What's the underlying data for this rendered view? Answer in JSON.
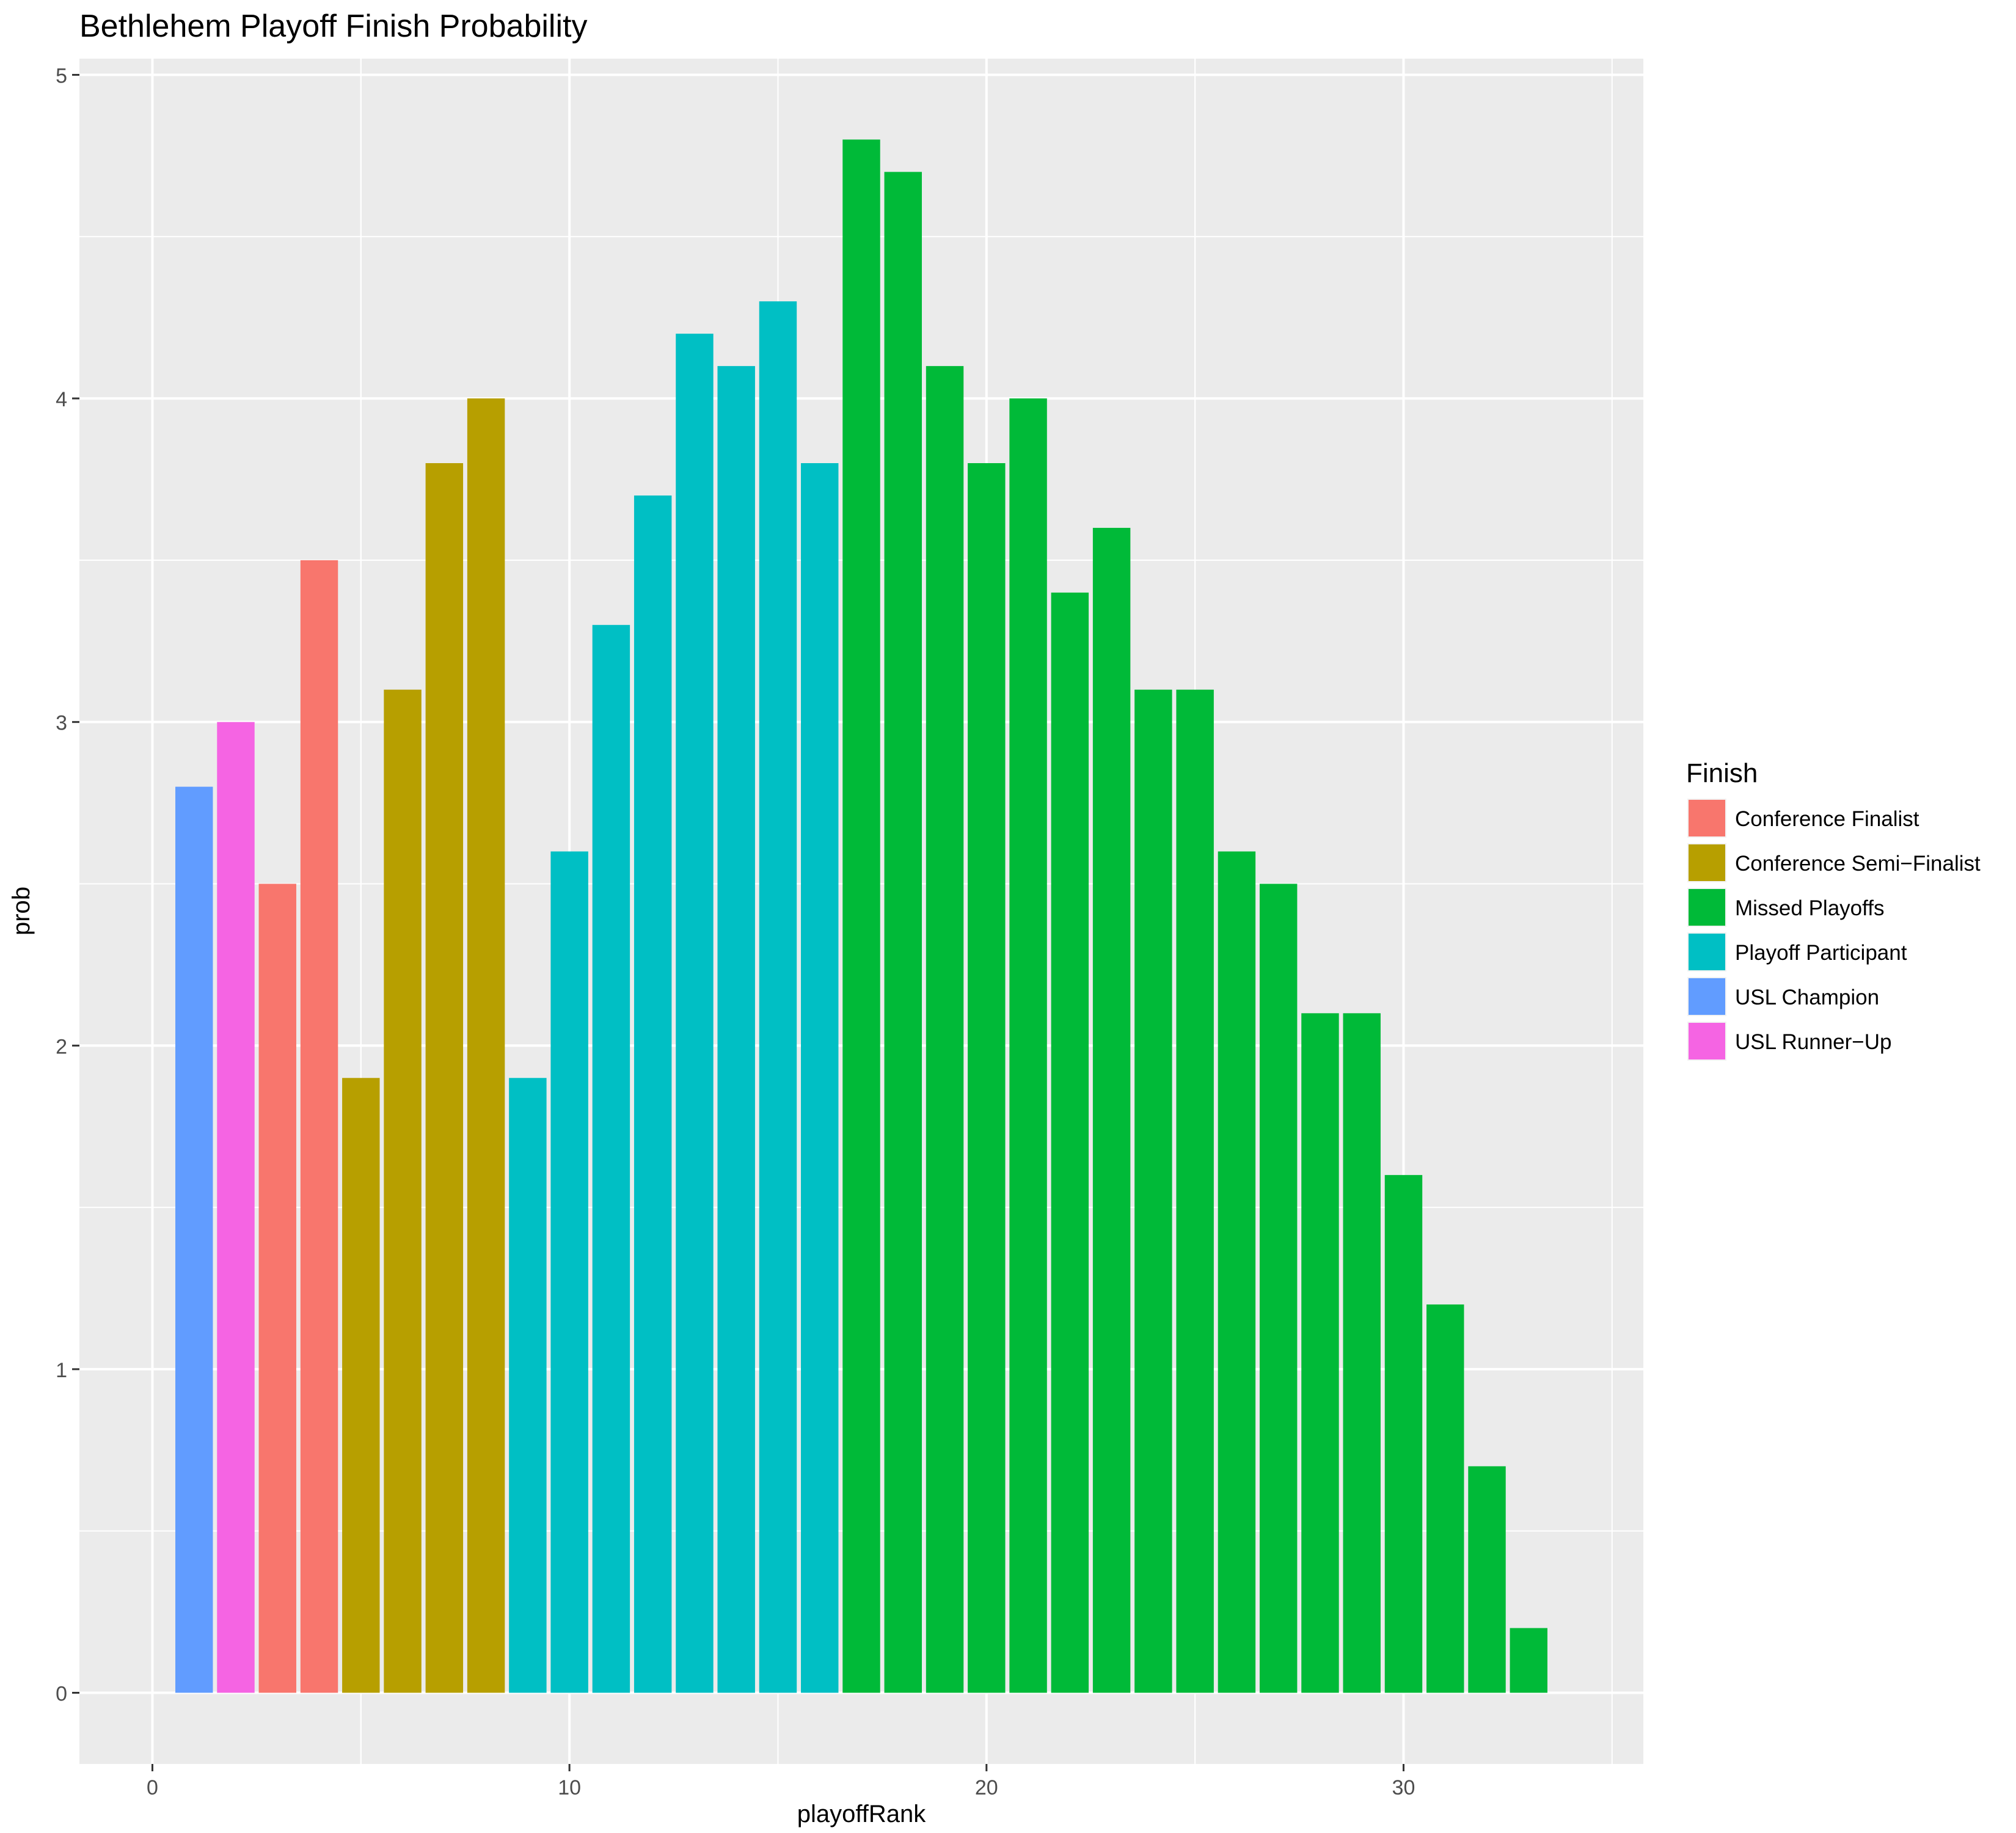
{
  "chart_data": {
    "type": "bar",
    "title": "Bethlehem Playoff Finish Probability",
    "xlabel": "playoffRank",
    "ylabel": "prob",
    "xlim": [
      -1.75,
      35.75
    ],
    "ylim": [
      -0.22,
      5.05
    ],
    "x_ticks": [
      0,
      10,
      20,
      30
    ],
    "y_ticks": [
      0,
      1,
      2,
      3,
      4,
      5
    ],
    "grid": true,
    "legend_position": "right",
    "legend": {
      "title": "Finish",
      "entries": [
        {
          "name": "Conference Finalist",
          "color": "#F8766D"
        },
        {
          "name": "Conference Semi−Finalist",
          "color": "#B79F00"
        },
        {
          "name": "Missed Playoffs",
          "color": "#00BA38"
        },
        {
          "name": "Playoff Participant",
          "color": "#00BFC4"
        },
        {
          "name": "USL Champion",
          "color": "#619CFF"
        },
        {
          "name": "USL Runner−Up",
          "color": "#F564E3"
        }
      ]
    },
    "points": [
      {
        "x": 1,
        "y": 2.8,
        "finish": "USL Champion"
      },
      {
        "x": 2,
        "y": 3.0,
        "finish": "USL Runner−Up"
      },
      {
        "x": 3,
        "y": 2.5,
        "finish": "Conference Finalist"
      },
      {
        "x": 4,
        "y": 3.5,
        "finish": "Conference Finalist"
      },
      {
        "x": 5,
        "y": 1.9,
        "finish": "Conference Semi−Finalist"
      },
      {
        "x": 6,
        "y": 3.1,
        "finish": "Conference Semi−Finalist"
      },
      {
        "x": 7,
        "y": 3.8,
        "finish": "Conference Semi−Finalist"
      },
      {
        "x": 8,
        "y": 4.0,
        "finish": "Conference Semi−Finalist"
      },
      {
        "x": 9,
        "y": 1.9,
        "finish": "Playoff Participant"
      },
      {
        "x": 10,
        "y": 2.6,
        "finish": "Playoff Participant"
      },
      {
        "x": 11,
        "y": 3.3,
        "finish": "Playoff Participant"
      },
      {
        "x": 12,
        "y": 3.7,
        "finish": "Playoff Participant"
      },
      {
        "x": 13,
        "y": 4.2,
        "finish": "Playoff Participant"
      },
      {
        "x": 14,
        "y": 4.1,
        "finish": "Playoff Participant"
      },
      {
        "x": 15,
        "y": 4.3,
        "finish": "Playoff Participant"
      },
      {
        "x": 16,
        "y": 3.8,
        "finish": "Playoff Participant"
      },
      {
        "x": 17,
        "y": 4.8,
        "finish": "Missed Playoffs"
      },
      {
        "x": 18,
        "y": 4.7,
        "finish": "Missed Playoffs"
      },
      {
        "x": 19,
        "y": 4.1,
        "finish": "Missed Playoffs"
      },
      {
        "x": 20,
        "y": 3.8,
        "finish": "Missed Playoffs"
      },
      {
        "x": 21,
        "y": 4.0,
        "finish": "Missed Playoffs"
      },
      {
        "x": 22,
        "y": 3.4,
        "finish": "Missed Playoffs"
      },
      {
        "x": 23,
        "y": 3.6,
        "finish": "Missed Playoffs"
      },
      {
        "x": 24,
        "y": 3.1,
        "finish": "Missed Playoffs"
      },
      {
        "x": 25,
        "y": 3.1,
        "finish": "Missed Playoffs"
      },
      {
        "x": 26,
        "y": 2.6,
        "finish": "Missed Playoffs"
      },
      {
        "x": 27,
        "y": 2.5,
        "finish": "Missed Playoffs"
      },
      {
        "x": 28,
        "y": 2.1,
        "finish": "Missed Playoffs"
      },
      {
        "x": 29,
        "y": 2.1,
        "finish": "Missed Playoffs"
      },
      {
        "x": 30,
        "y": 1.6,
        "finish": "Missed Playoffs"
      },
      {
        "x": 31,
        "y": 1.2,
        "finish": "Missed Playoffs"
      },
      {
        "x": 32,
        "y": 0.7,
        "finish": "Missed Playoffs"
      },
      {
        "x": 33,
        "y": 0.2,
        "finish": "Missed Playoffs"
      }
    ]
  }
}
